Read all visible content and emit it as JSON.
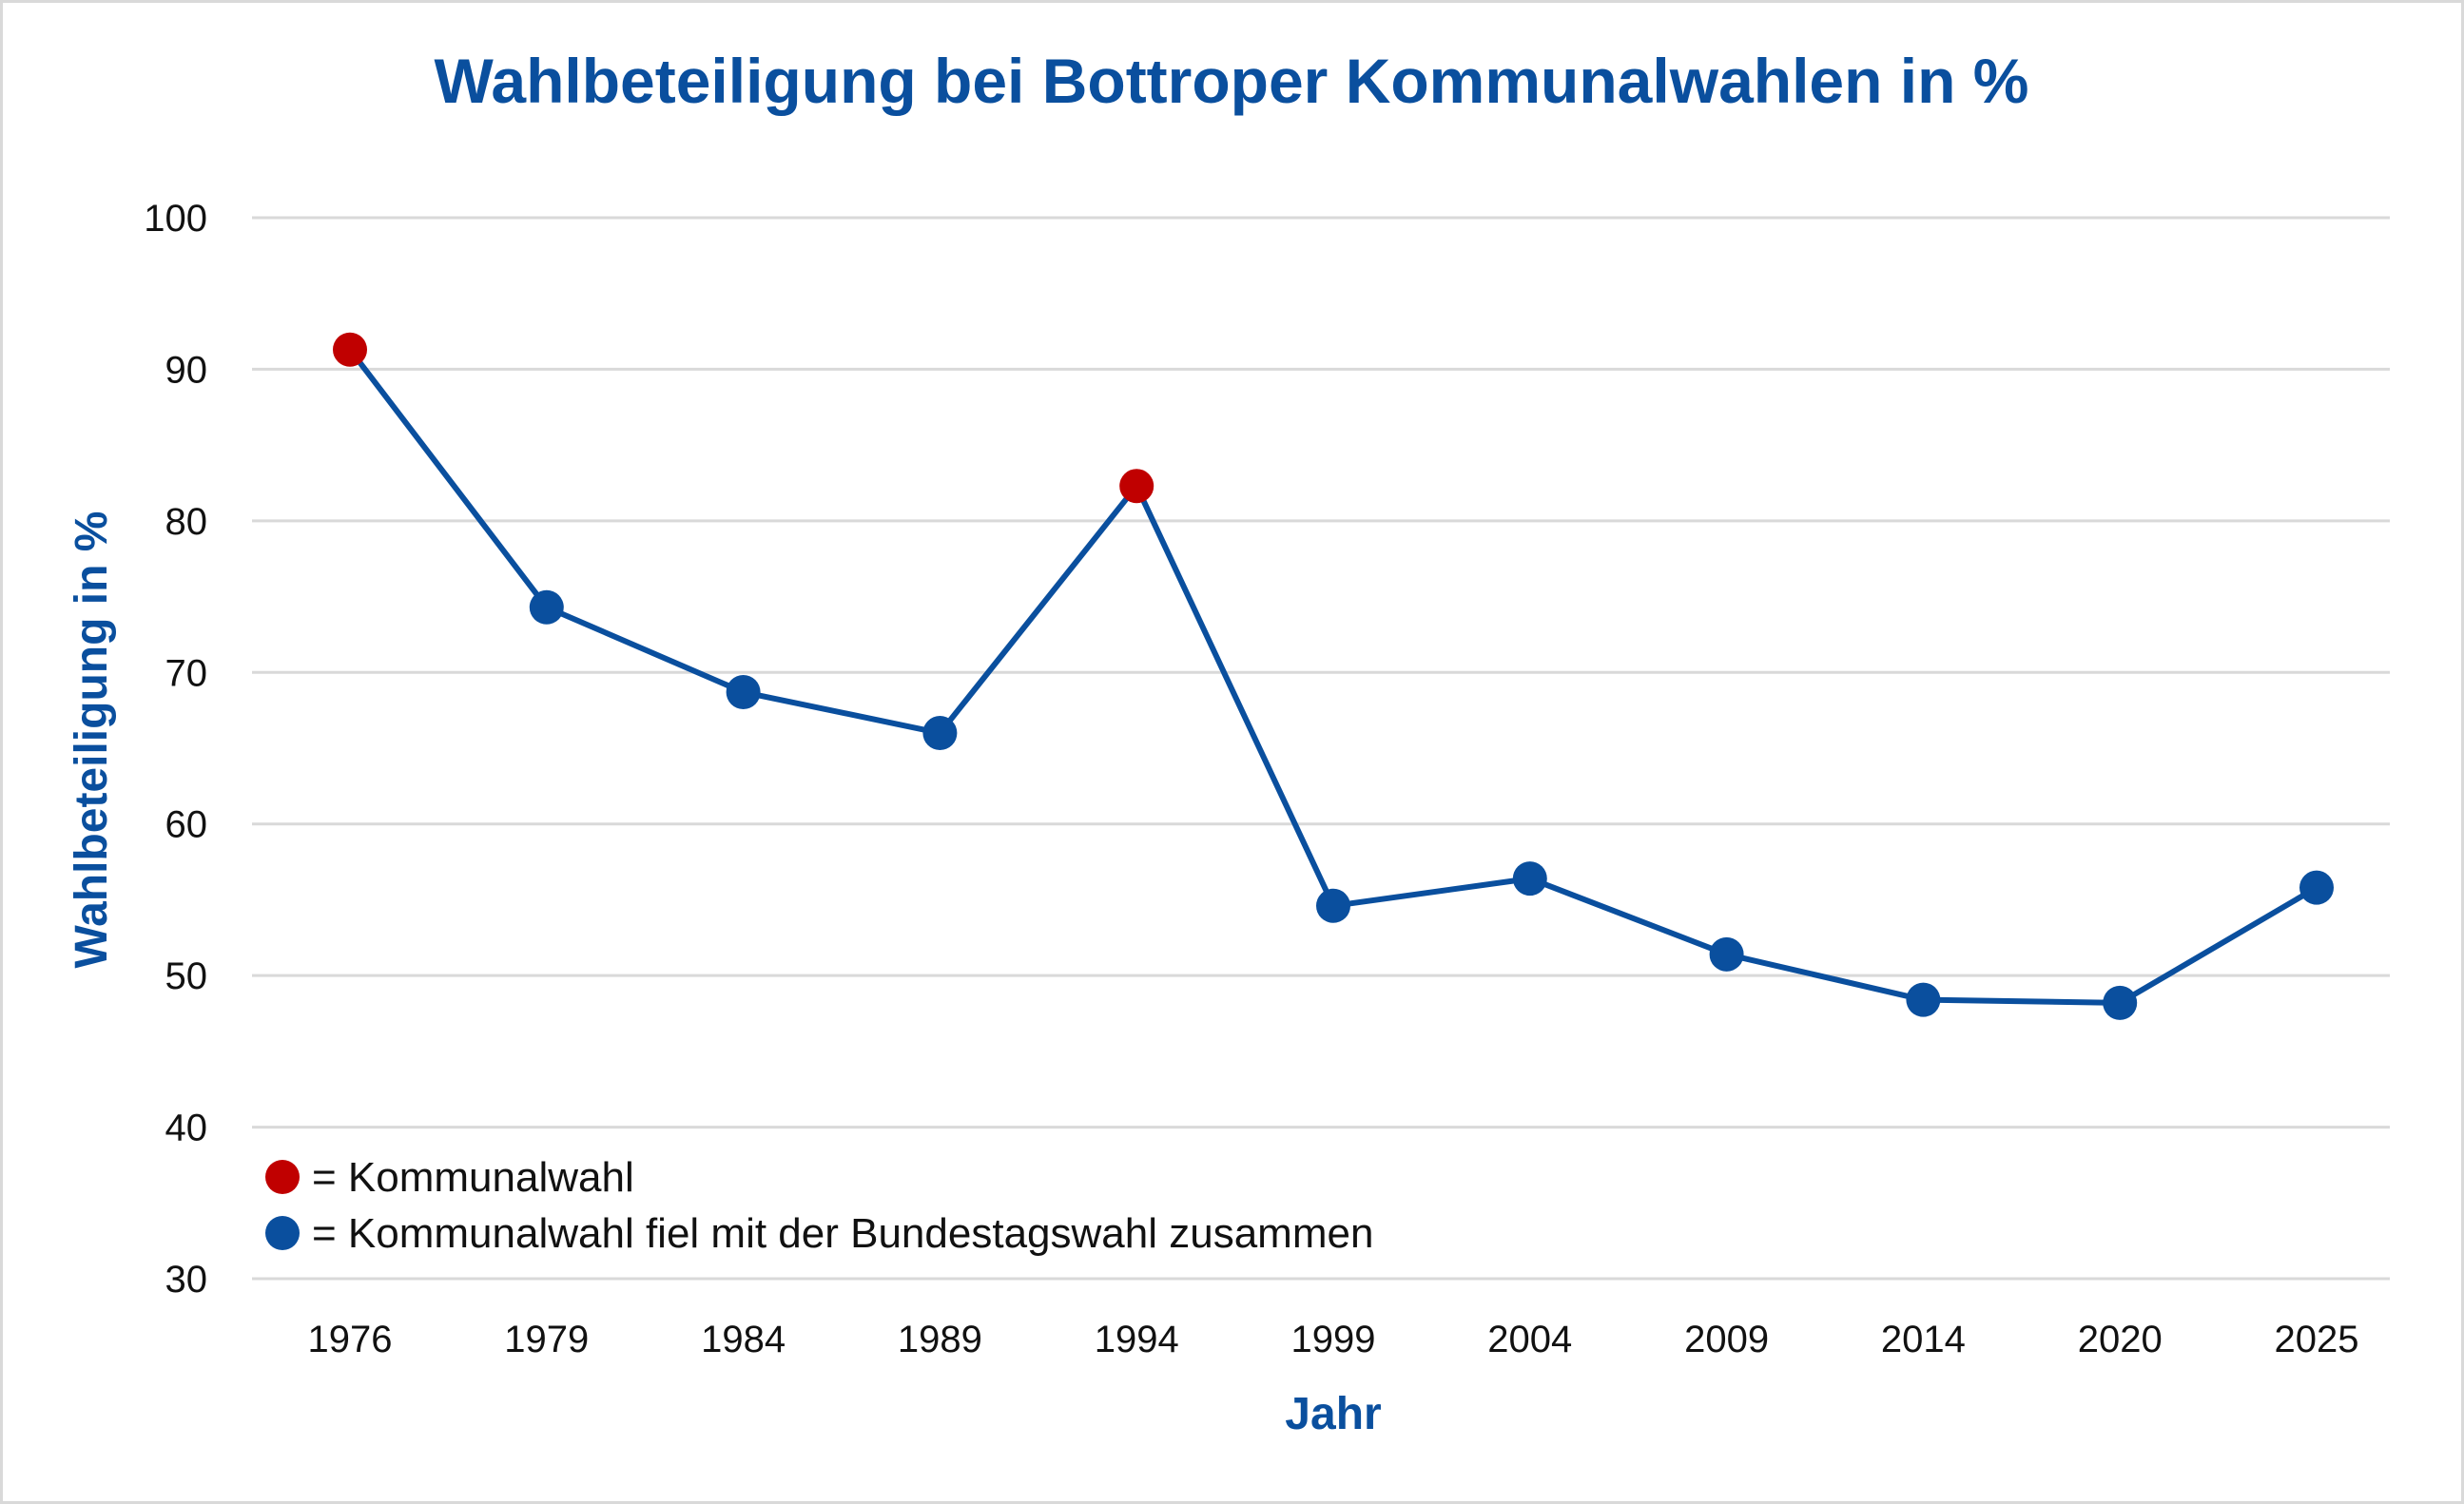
{
  "chart_data": {
    "type": "line",
    "title": "Wahlbeteiligung bei Bottroper Kommunalwahlen in %",
    "xlabel": "Jahr",
    "ylabel": "Wahlbeteiligung in %",
    "ylim": [
      30,
      100
    ],
    "yticks": [
      "30",
      "40",
      "50",
      "60",
      "70",
      "80",
      "90",
      "100"
    ],
    "grid": true,
    "categories": [
      "1976",
      "1979",
      "1984",
      "1989",
      "1994",
      "1999",
      "2004",
      "2009",
      "2014",
      "2020",
      "2025"
    ],
    "series": [
      {
        "name": "Wahlbeteiligung",
        "values": [
          91.3,
          74.3,
          68.7,
          66.0,
          82.3,
          54.6,
          56.4,
          51.4,
          48.4,
          48.2,
          55.8
        ],
        "marker_type": [
          "kommunalwahl",
          "zusammen",
          "zusammen",
          "zusammen",
          "kommunalwahl",
          "zusammen",
          "zusammen",
          "zusammen",
          "zusammen",
          "zusammen",
          "zusammen"
        ]
      }
    ],
    "legend": {
      "placement": "bottom-left",
      "items": [
        {
          "key": "kommunalwahl",
          "label": "= Kommunalwahl",
          "color": "#c00000"
        },
        {
          "key": "zusammen",
          "label": "= Kommunalwahl fiel mit der Bundestagswahl zusammen",
          "color": "#0a4f9e"
        }
      ]
    },
    "colors": {
      "line": "#0a4f9e",
      "accent_text": "#0a4f9e",
      "kommunalwahl": "#c00000",
      "zusammen": "#0a4f9e",
      "grid": "#d9d9d9"
    }
  }
}
